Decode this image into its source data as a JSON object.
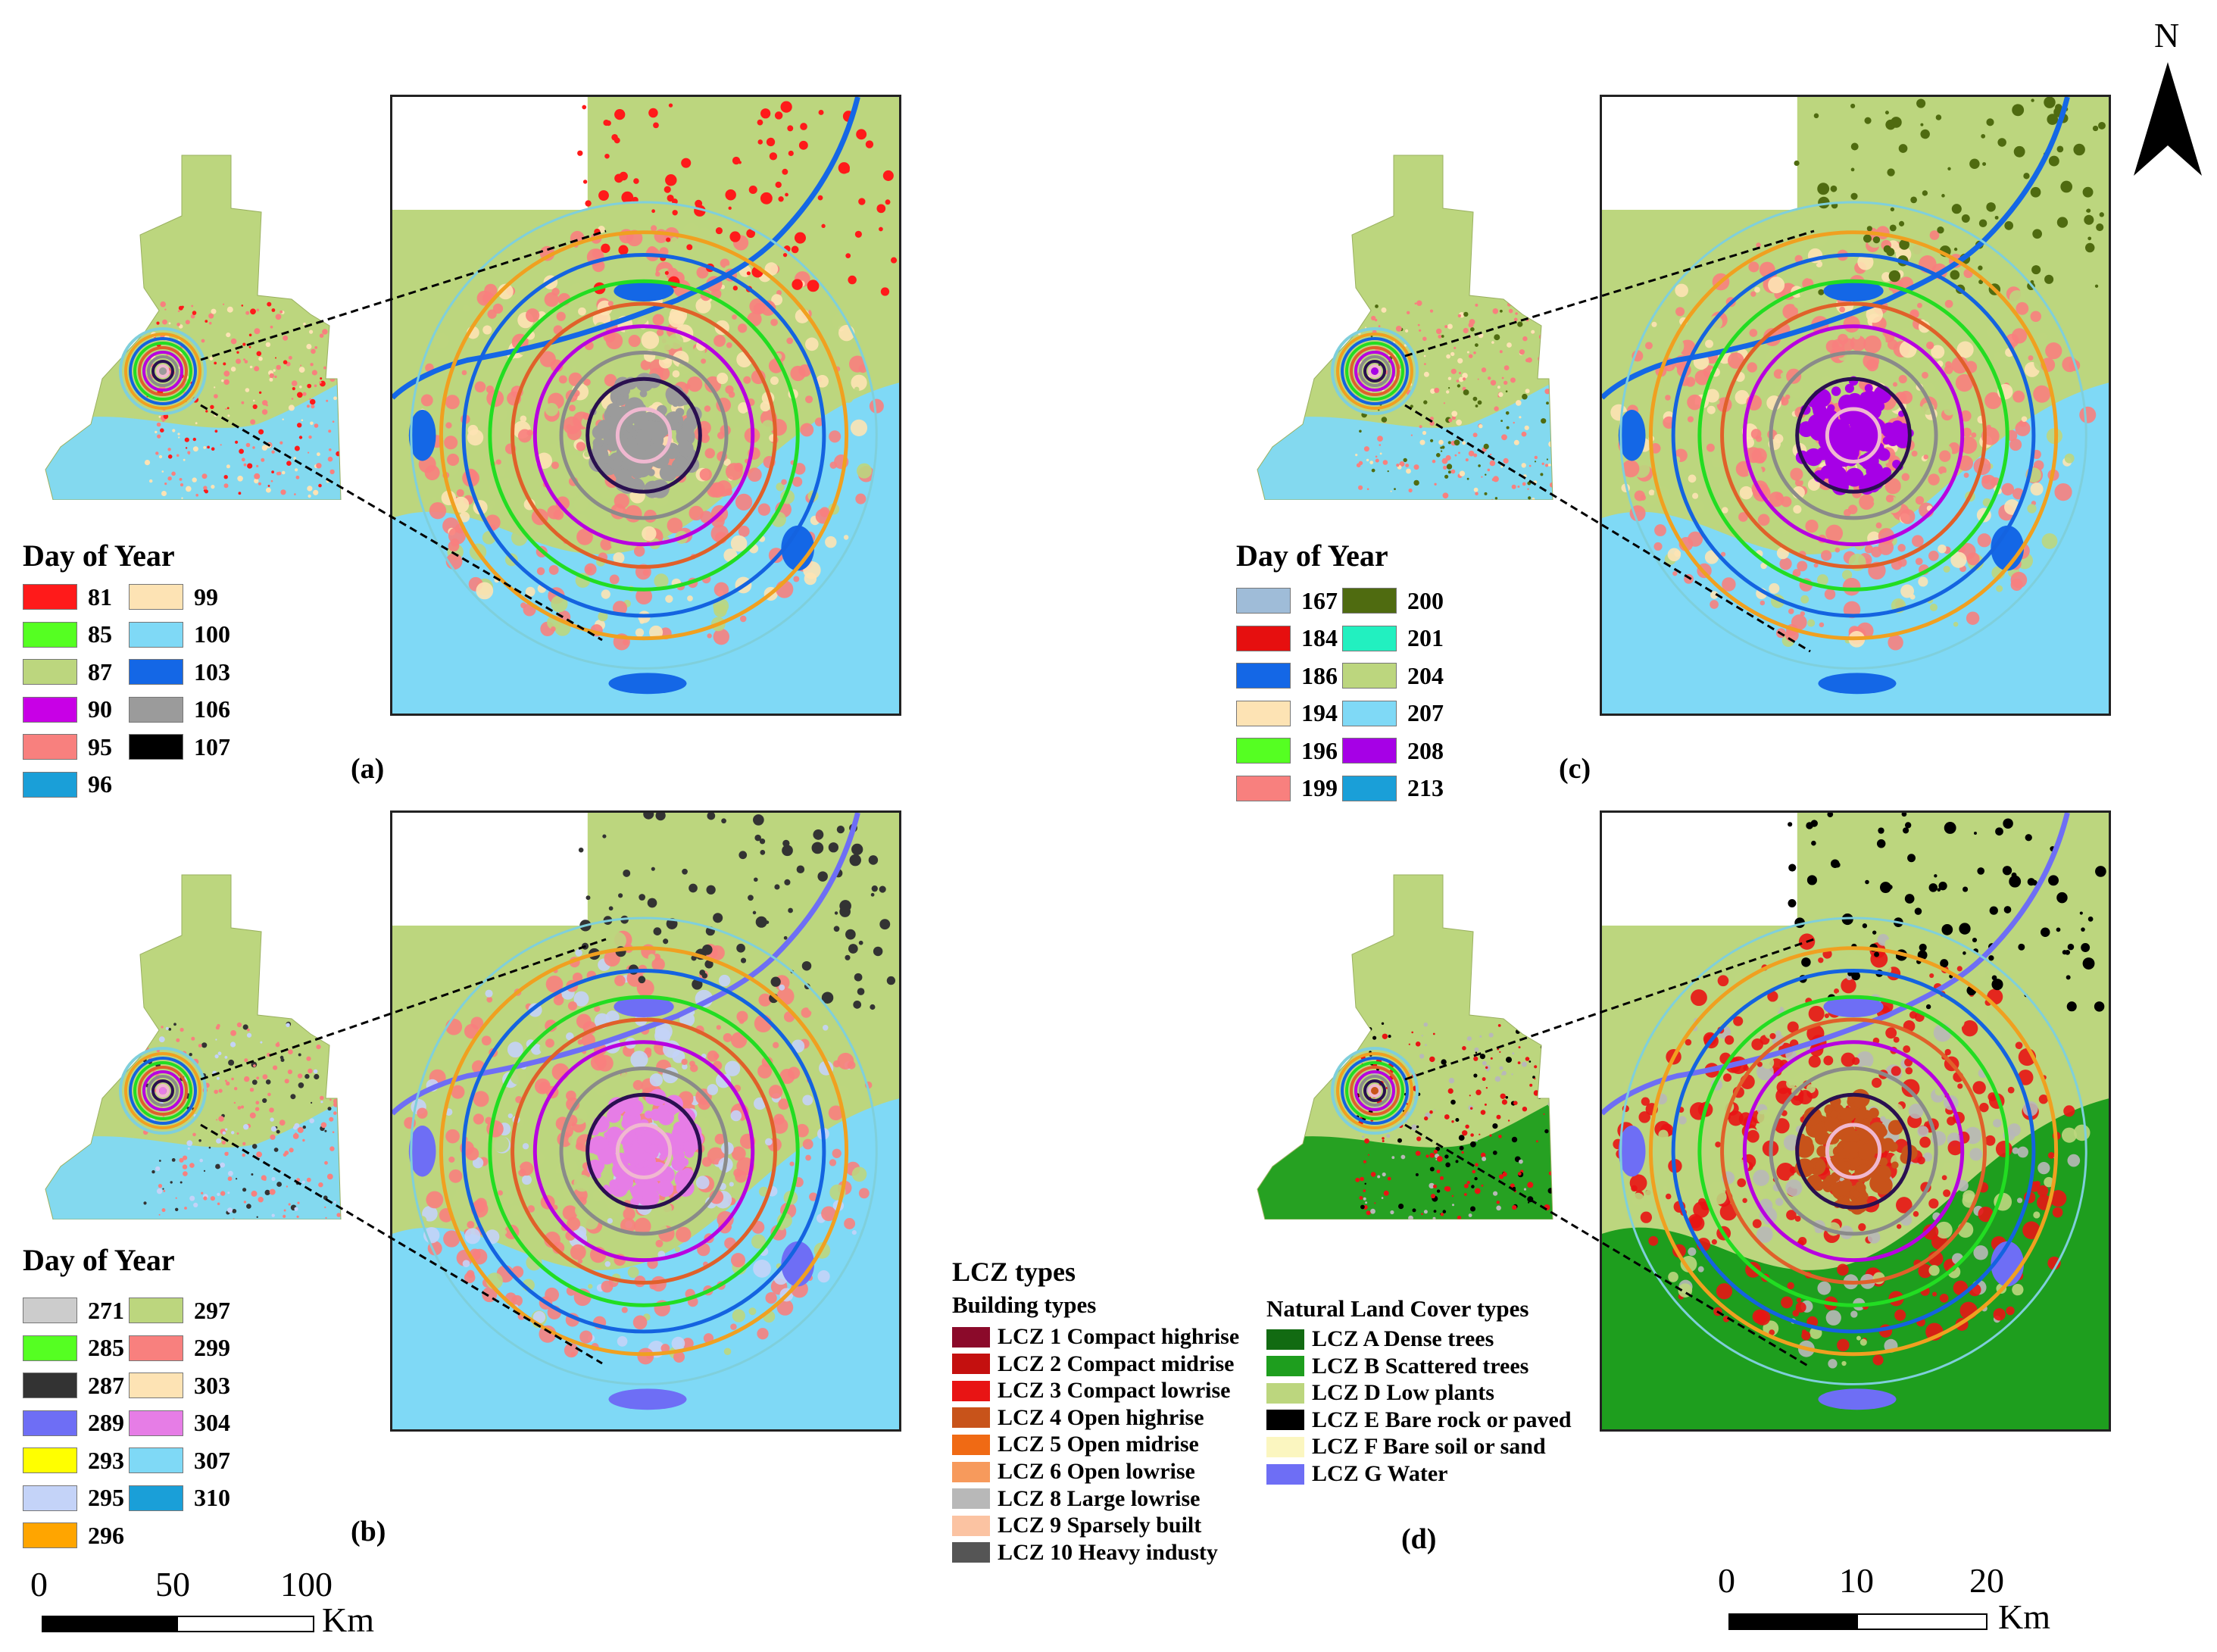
{
  "panels": [
    {
      "id": "a",
      "label": "(a)",
      "legend_title": "Day of Year",
      "legend": [
        {
          "value": "81",
          "color": "#ff1a1a"
        },
        {
          "value": "85",
          "color": "#55ff22"
        },
        {
          "value": "87",
          "color": "#bcd67e"
        },
        {
          "value": "90",
          "color": "#c800e6"
        },
        {
          "value": "95",
          "color": "#f8807e"
        },
        {
          "value": "96",
          "color": "#1a9fd8"
        },
        {
          "value": "99",
          "color": "#fde3b4"
        },
        {
          "value": "100",
          "color": "#7fd9f6"
        },
        {
          "value": "103",
          "color": "#1467e6"
        },
        {
          "value": "106",
          "color": "#9b9b9b"
        },
        {
          "value": "107",
          "color": "#000000"
        }
      ],
      "base": "#bcd67e",
      "south": "#7fd9f6",
      "urban": "#f8807e",
      "pale": "#fde3b4",
      "core": "#9b9b9b",
      "water": "#1467e6",
      "accent": "#ff1a1a"
    },
    {
      "id": "b",
      "label": "(b)",
      "legend_title": "Day of Year",
      "legend": [
        {
          "value": "271",
          "color": "#cccccc"
        },
        {
          "value": "285",
          "color": "#55ff22"
        },
        {
          "value": "287",
          "color": "#333333"
        },
        {
          "value": "289",
          "color": "#6e6ef5"
        },
        {
          "value": "293",
          "color": "#ffff00"
        },
        {
          "value": "295",
          "color": "#c4d3f8"
        },
        {
          "value": "296",
          "color": "#ffa500"
        },
        {
          "value": "297",
          "color": "#bcd67e"
        },
        {
          "value": "299",
          "color": "#f8807e"
        },
        {
          "value": "303",
          "color": "#fde3b4"
        },
        {
          "value": "304",
          "color": "#e67de6"
        },
        {
          "value": "307",
          "color": "#7fd9f6"
        },
        {
          "value": "310",
          "color": "#1a9fd8"
        }
      ],
      "base": "#bcd67e",
      "south": "#7fd9f6",
      "urban": "#f8807e",
      "pale": "#c4d3f8",
      "core": "#e67de6",
      "water": "#6e6ef5",
      "accent": "#333333"
    },
    {
      "id": "c",
      "label": "(c)",
      "legend_title": "Day of Year",
      "legend": [
        {
          "value": "167",
          "color": "#9fbcd8"
        },
        {
          "value": "184",
          "color": "#e60f0f"
        },
        {
          "value": "186",
          "color": "#1467e6"
        },
        {
          "value": "194",
          "color": "#fde3b4"
        },
        {
          "value": "196",
          "color": "#55ff22"
        },
        {
          "value": "199",
          "color": "#f8807e"
        },
        {
          "value": "200",
          "color": "#4f6b10"
        },
        {
          "value": "201",
          "color": "#22f0c0"
        },
        {
          "value": "204",
          "color": "#bcd67e"
        },
        {
          "value": "207",
          "color": "#7fd9f6"
        },
        {
          "value": "208",
          "color": "#a600e6"
        },
        {
          "value": "213",
          "color": "#1a9fd8"
        }
      ],
      "base": "#bcd67e",
      "south": "#7fd9f6",
      "urban": "#f8807e",
      "pale": "#fde3b4",
      "core": "#a600e6",
      "water": "#1467e6",
      "accent": "#4f6b10"
    },
    {
      "id": "d",
      "label": "(d)",
      "base": "#bcd67e",
      "south": "#1e9e1e",
      "urban": "#e81414",
      "pale": "#b8b8b8",
      "core": "#c8531a",
      "water": "#6e6ef5",
      "accent": "#000000"
    }
  ],
  "lcz": {
    "title": "LCZ types",
    "building_heading": "Building types",
    "building": [
      {
        "label": "LCZ 1 Compact highrise",
        "color": "#8b0a2a"
      },
      {
        "label": "LCZ 2 Compact midrise",
        "color": "#c4100f"
      },
      {
        "label": "LCZ 3 Compact lowrise",
        "color": "#e81414"
      },
      {
        "label": "LCZ 4 Open highrise",
        "color": "#c8531a"
      },
      {
        "label": "LCZ 5 Open midrise",
        "color": "#f06a14"
      },
      {
        "label": "LCZ 6 Open lowrise",
        "color": "#f79a5c"
      },
      {
        "label": "LCZ 8 Large lowrise",
        "color": "#b8b8b8"
      },
      {
        "label": "LCZ 9 Sparsely built",
        "color": "#fbc3a2"
      },
      {
        "label": "LCZ 10 Heavy industy",
        "color": "#555555"
      }
    ],
    "natural_heading": "Natural Land Cover types",
    "natural": [
      {
        "label": "LCZ A Dense trees",
        "color": "#126b12"
      },
      {
        "label": "LCZ B Scattered trees",
        "color": "#1e9e1e"
      },
      {
        "label": "LCZ D Low plants",
        "color": "#bcd67e"
      },
      {
        "label": "LCZ E Bare rock or paved",
        "color": "#000000"
      },
      {
        "label": "LCZ F Bare soil or sand",
        "color": "#fbf6c0"
      },
      {
        "label": "LCZ G Water",
        "color": "#6e6ef5"
      }
    ]
  },
  "scale_regional": {
    "ticks": [
      "0",
      "50",
      "100"
    ],
    "unit": "Km"
  },
  "scale_local": {
    "ticks": [
      "0",
      "10",
      "20"
    ],
    "unit": "Km"
  },
  "north": {
    "label": "N"
  },
  "ring_colors": [
    "#7fcfdb",
    "#f0a020",
    "#1463e0",
    "#22dd22",
    "#e0602a",
    "#b800e0",
    "#8a8a8a",
    "#2a1050",
    "#f0b8d0"
  ]
}
